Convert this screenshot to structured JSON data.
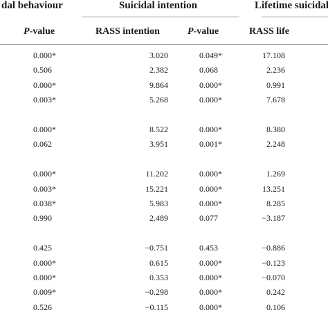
{
  "header": {
    "groups": [
      "dal behaviour",
      "Suicidal intention",
      "Lifetime suicidal"
    ],
    "columns": [
      "P-value",
      "RASS intention",
      "P-value",
      "RASS life"
    ]
  },
  "table": {
    "groups": [
      {
        "rows": [
          [
            "0.000*",
            "3.020",
            "0.049*",
            "17.108"
          ],
          [
            "0.506",
            "2.382",
            "0.068",
            "2.236"
          ],
          [
            "0.000*",
            "9.864",
            "0.000*",
            "0.991"
          ],
          [
            "0.003*",
            "5.268",
            "0.000*",
            "7.678"
          ]
        ]
      },
      {
        "rows": [
          [
            "0.000*",
            "8.522",
            "0.000*",
            "8.380"
          ],
          [
            "0.062",
            "3.951",
            "0.001*",
            "2.248"
          ]
        ]
      },
      {
        "rows": [
          [
            "0.000*",
            "11.202",
            "0.000*",
            "1.269"
          ],
          [
            "0.003*",
            "15.221",
            "0.000*",
            "13.251"
          ],
          [
            "0.038*",
            "5.983",
            "0.000*",
            "8.285"
          ],
          [
            "0.990",
            "2.489",
            "0.077",
            "−3.187"
          ]
        ]
      },
      {
        "rows": [
          [
            "0.425",
            "−0.751",
            "0.453",
            "−0.886"
          ],
          [
            "0.000*",
            "0.615",
            "0.000*",
            "−0.123"
          ],
          [
            "0.000*",
            "0.353",
            "0.000*",
            "−0.070"
          ],
          [
            "0.009*",
            "−0.298",
            "0.000*",
            "0.242"
          ],
          [
            "0.526",
            "−0.115",
            "0.000*",
            "0.106"
          ]
        ]
      }
    ]
  }
}
